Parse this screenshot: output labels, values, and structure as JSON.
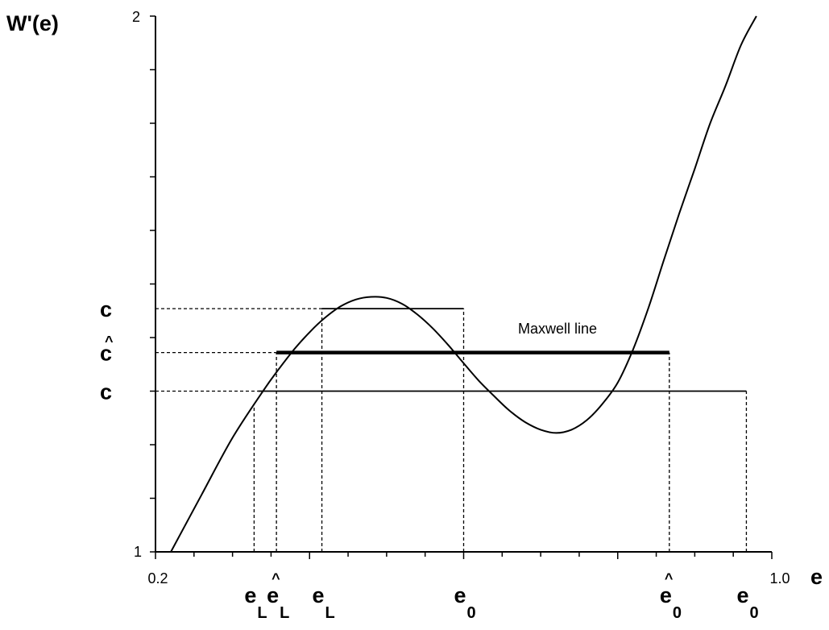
{
  "chart_data": {
    "type": "line",
    "title": "",
    "ylabel": "W'(e)",
    "xlabel": "e",
    "xlim": [
      0.2,
      1.0
    ],
    "ylim": [
      1,
      2
    ],
    "x_tick_labels": [
      "0.2",
      "1.0"
    ],
    "y_tick_labels": [
      "1",
      "2"
    ],
    "grid": false,
    "curve": {
      "x": [
        0.22,
        0.26,
        0.3,
        0.34,
        0.36,
        0.38,
        0.4,
        0.42,
        0.44,
        0.46,
        0.48,
        0.5,
        0.52,
        0.54,
        0.56,
        0.58,
        0.6,
        0.62,
        0.64,
        0.66,
        0.68,
        0.7,
        0.72,
        0.74,
        0.76,
        0.78,
        0.8,
        0.82,
        0.84,
        0.86,
        0.88,
        0.9,
        0.92,
        0.94,
        0.96,
        0.98
      ],
      "y": [
        1.0,
        1.107,
        1.213,
        1.301,
        1.341,
        1.378,
        1.41,
        1.437,
        1.458,
        1.471,
        1.476,
        1.474,
        1.463,
        1.443,
        1.417,
        1.386,
        1.352,
        1.319,
        1.29,
        1.263,
        1.242,
        1.228,
        1.222,
        1.228,
        1.246,
        1.276,
        1.316,
        1.378,
        1.456,
        1.545,
        1.632,
        1.715,
        1.8,
        1.87,
        1.946,
        2.0
      ]
    },
    "horizontal_lines": [
      {
        "y": 1.454,
        "x_start": 0.416,
        "x_end": 0.6,
        "weight": "thin"
      },
      {
        "y": 1.372,
        "x_start": 0.357,
        "x_end": 0.867,
        "weight": "thick",
        "label": "Maxwell line"
      },
      {
        "y": 1.3,
        "x_start": 0.333,
        "x_end": 0.967,
        "weight": "thin"
      }
    ],
    "vertical_dashed": [
      0.328,
      0.357,
      0.416,
      0.6,
      0.867,
      0.967
    ],
    "y_markers": [
      {
        "y": 1.454,
        "label": "c",
        "hat": ""
      },
      {
        "y": 1.372,
        "label": "c",
        "hat": "^"
      },
      {
        "y": 1.3,
        "label": "c",
        "hat": ""
      }
    ],
    "x_markers": [
      {
        "x": 0.328,
        "label": "e",
        "sub": "L",
        "hat": ""
      },
      {
        "x": 0.357,
        "label": "e",
        "sub": "L",
        "hat": "^"
      },
      {
        "x": 0.416,
        "label": "e",
        "sub": "L",
        "hat": ""
      },
      {
        "x": 0.6,
        "label": "e",
        "sub": "0",
        "hat": ""
      },
      {
        "x": 0.867,
        "label": "e",
        "sub": "0",
        "hat": "^"
      },
      {
        "x": 0.967,
        "label": "e",
        "sub": "0",
        "hat": ""
      }
    ],
    "annotation": "Maxwell line"
  }
}
